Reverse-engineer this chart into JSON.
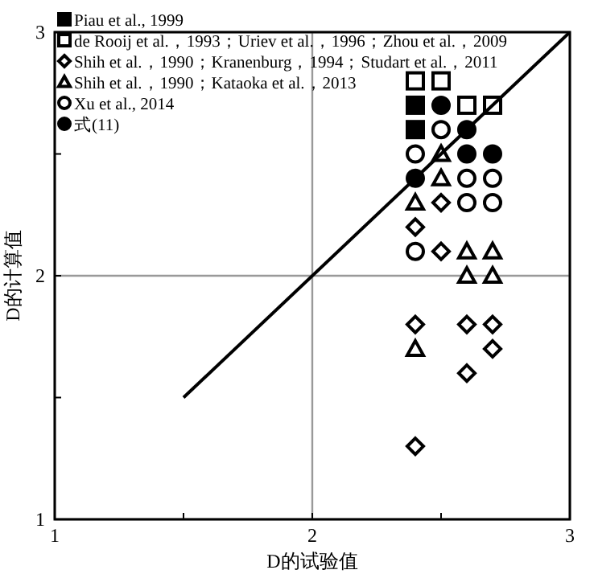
{
  "chart_data": {
    "type": "scatter",
    "xlabel": "D的试验值",
    "ylabel": "D的计算值",
    "xlim": [
      1,
      3
    ],
    "ylim": [
      1,
      3
    ],
    "xticks": [
      1,
      {
        "value": 1.5,
        "label": null
      },
      2,
      {
        "value": 2.5,
        "label": null
      },
      3
    ],
    "yticks": [
      1,
      {
        "value": 1.5,
        "label": null
      },
      2,
      {
        "value": 2.5,
        "label": null
      },
      3
    ],
    "grid": true,
    "legend": "top left",
    "series": [
      {
        "name": "Piau et al., 1999",
        "color": "#000000",
        "marker": "square",
        "x": [
          2.4,
          2.4
        ],
        "values": [
          2.7,
          2.6
        ]
      },
      {
        "name": "de Rooij et al.，1993；Uriev et al.，1996；Zhou et al.，2009",
        "color": "#ffffff",
        "marker": "square",
        "x": [
          2.4,
          2.5,
          2.6,
          2.7
        ],
        "values": [
          2.8,
          2.8,
          2.7,
          2.7
        ]
      },
      {
        "name": "Shih et al.，1990；Kranenburg，1994；Studart et al.，2011",
        "color": "#ffffff",
        "marker": "diamond",
        "x": [
          2.5,
          2.4,
          2.5,
          2.4,
          2.6,
          2.7,
          2.7,
          2.6,
          2.4
        ],
        "values": [
          2.3,
          2.2,
          2.1,
          1.8,
          1.8,
          1.8,
          1.7,
          1.6,
          1.3
        ]
      },
      {
        "name": "Shih et al.，1990；Kataoka et al.，2013",
        "color": "#ffffff",
        "marker": "triangle",
        "x": [
          2.5,
          2.5,
          2.4,
          2.6,
          2.7,
          2.6,
          2.7,
          2.4
        ],
        "values": [
          2.5,
          2.4,
          2.3,
          2.1,
          2.1,
          2.0,
          2.0,
          1.7
        ]
      },
      {
        "name": "Xu et al., 2014",
        "color": "#ffffff",
        "marker": "circle",
        "x": [
          2.5,
          2.4,
          2.6,
          2.7,
          2.6,
          2.7,
          2.4
        ],
        "values": [
          2.6,
          2.5,
          2.4,
          2.4,
          2.3,
          2.3,
          2.1
        ]
      },
      {
        "name": "式(11)",
        "color": "#000000",
        "marker": "circle",
        "x": [
          2.5,
          2.6,
          2.6,
          2.7,
          2.4
        ],
        "values": [
          2.7,
          2.6,
          2.5,
          2.5,
          2.4
        ]
      },
      {
        "type": "line",
        "color": "#000000",
        "line_style": "solid",
        "marker": "none",
        "x": [
          1.5,
          3
        ],
        "values": [
          1.5,
          3
        ]
      }
    ]
  }
}
